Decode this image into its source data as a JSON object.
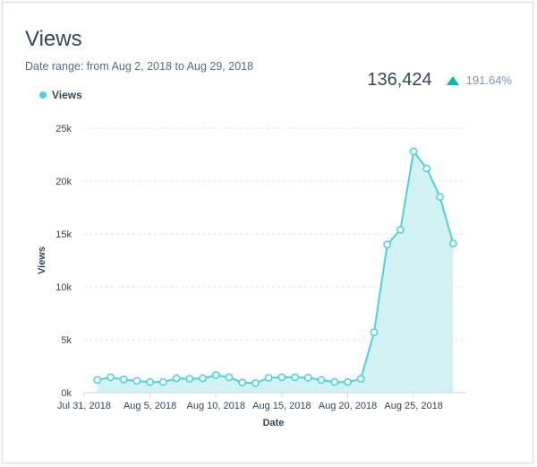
{
  "header": {
    "title": "Views",
    "date_range": "Date range: from Aug 2, 2018 to Aug 29, 2018"
  },
  "kpi": {
    "value": "136,424",
    "change": "191.64%",
    "direction": "up-arrow-icon"
  },
  "colors": {
    "series": "#4fd3d9",
    "fill": "#cdf1f3",
    "up": "#00bda5"
  },
  "chart_data": {
    "type": "area",
    "xlabel": "Date",
    "ylabel": "Views",
    "legend": "top-left",
    "grid": true,
    "ylim": [
      0,
      25000
    ],
    "y_ticks": [
      {
        "value": 0,
        "label": "0k"
      },
      {
        "value": 5000,
        "label": "5k"
      },
      {
        "value": 10000,
        "label": "10k"
      },
      {
        "value": 15000,
        "label": "15k"
      },
      {
        "value": 20000,
        "label": "20k"
      },
      {
        "value": 25000,
        "label": "25k"
      }
    ],
    "x_ticks": [
      {
        "date": "2018-07-31",
        "label": "Jul 31, 2018"
      },
      {
        "date": "2018-08-05",
        "label": "Aug 5, 2018"
      },
      {
        "date": "2018-08-10",
        "label": "Aug 10, 2018"
      },
      {
        "date": "2018-08-15",
        "label": "Aug 15, 2018"
      },
      {
        "date": "2018-08-20",
        "label": "Aug 20, 2018"
      },
      {
        "date": "2018-08-25",
        "label": "Aug 25, 2018"
      }
    ],
    "xlim": [
      "2018-07-31",
      "2018-08-29"
    ],
    "series": [
      {
        "name": "Views",
        "points": [
          {
            "x": "2018-08-01",
            "y": 1200
          },
          {
            "x": "2018-08-02",
            "y": 1450
          },
          {
            "x": "2018-08-03",
            "y": 1250
          },
          {
            "x": "2018-08-04",
            "y": 1100
          },
          {
            "x": "2018-08-05",
            "y": 1000
          },
          {
            "x": "2018-08-06",
            "y": 1000
          },
          {
            "x": "2018-08-07",
            "y": 1350
          },
          {
            "x": "2018-08-08",
            "y": 1300
          },
          {
            "x": "2018-08-09",
            "y": 1350
          },
          {
            "x": "2018-08-10",
            "y": 1650
          },
          {
            "x": "2018-08-11",
            "y": 1450
          },
          {
            "x": "2018-08-12",
            "y": 950
          },
          {
            "x": "2018-08-13",
            "y": 900
          },
          {
            "x": "2018-08-14",
            "y": 1400
          },
          {
            "x": "2018-08-15",
            "y": 1450
          },
          {
            "x": "2018-08-16",
            "y": 1450
          },
          {
            "x": "2018-08-17",
            "y": 1400
          },
          {
            "x": "2018-08-18",
            "y": 1200
          },
          {
            "x": "2018-08-19",
            "y": 1000
          },
          {
            "x": "2018-08-20",
            "y": 1000
          },
          {
            "x": "2018-08-21",
            "y": 1300
          },
          {
            "x": "2018-08-22",
            "y": 5700
          },
          {
            "x": "2018-08-23",
            "y": 14000
          },
          {
            "x": "2018-08-24",
            "y": 15400
          },
          {
            "x": "2018-08-25",
            "y": 22800
          },
          {
            "x": "2018-08-26",
            "y": 21200
          },
          {
            "x": "2018-08-27",
            "y": 18500
          },
          {
            "x": "2018-08-28",
            "y": 14100
          }
        ]
      }
    ]
  }
}
